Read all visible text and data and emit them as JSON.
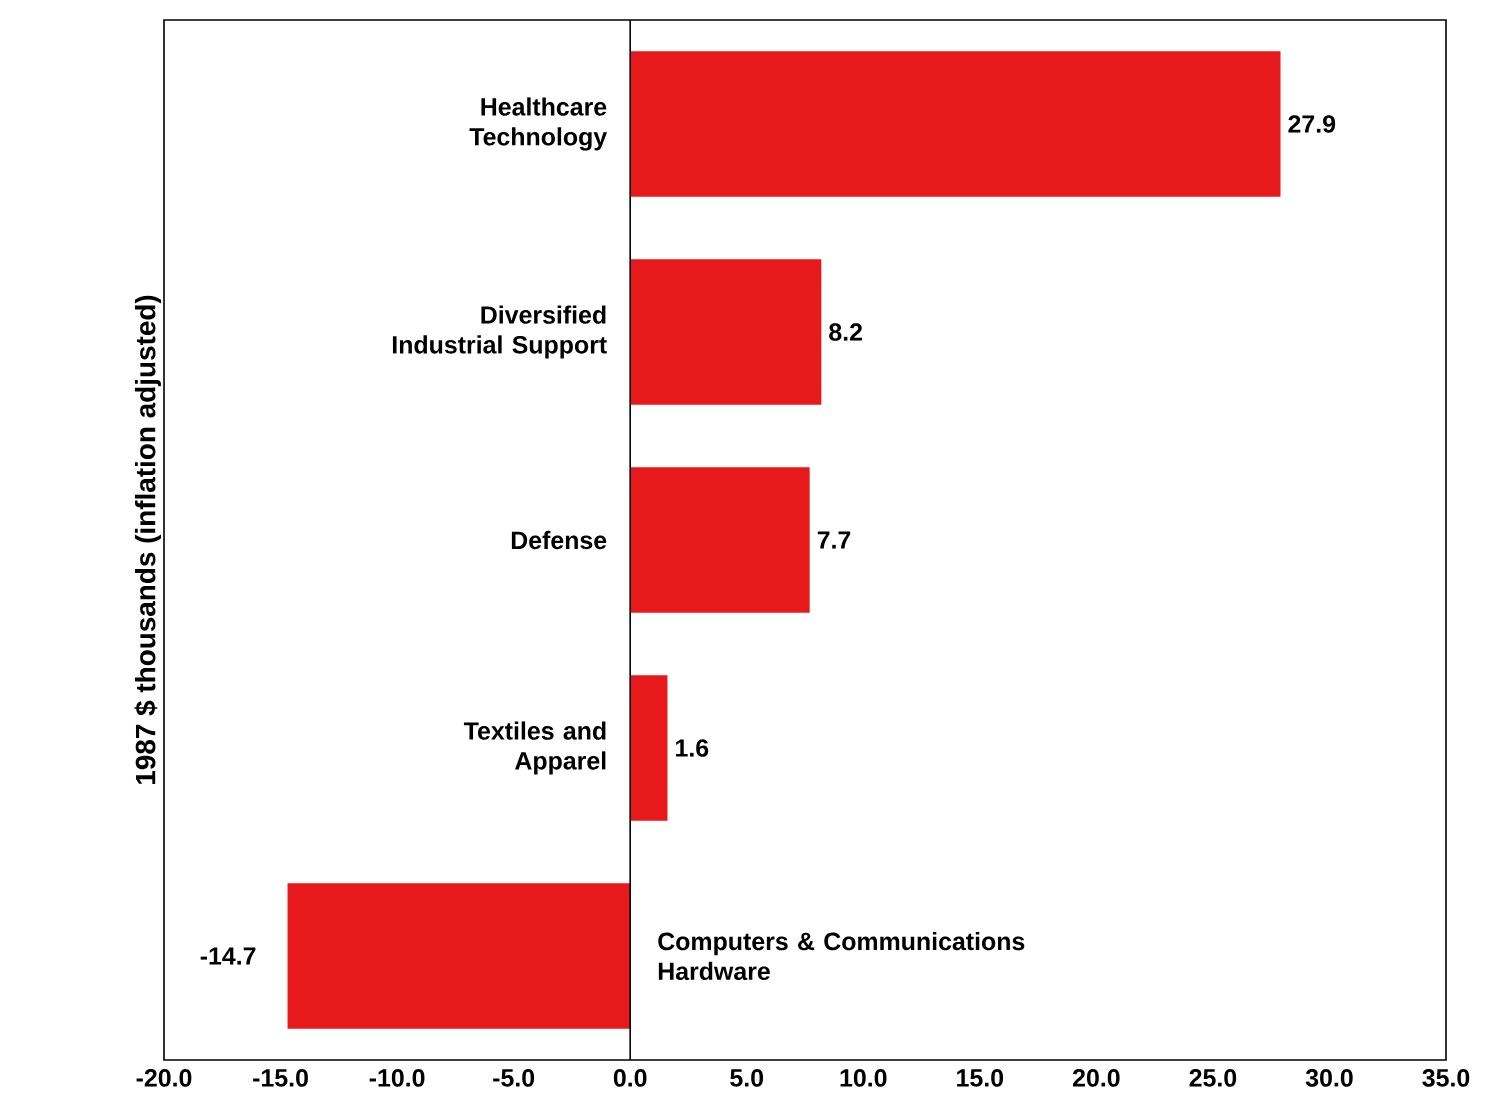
{
  "chart_data": {
    "type": "bar",
    "orientation": "horizontal",
    "ylabel": "1987 $ thousands (inflation adjusted)",
    "categories": [
      "Healthcare Technology",
      "Diversified Industrial Support",
      "Defense",
      "Textiles and Apparel",
      "Computers & Communications Hardware"
    ],
    "values": [
      27.9,
      8.2,
      7.7,
      1.6,
      -14.7
    ],
    "value_labels": [
      "27.9",
      "8.2",
      "7.7",
      "1.6",
      "-14.7"
    ],
    "color": "#e8191a",
    "xlim": [
      -20,
      35
    ],
    "xticks": [
      {
        "value": -20,
        "label": "-20.0"
      },
      {
        "value": -15,
        "label": "-15.0"
      },
      {
        "value": -10,
        "label": "-10.0"
      },
      {
        "value": -5,
        "label": "-5.0"
      },
      {
        "value": 0,
        "label": "0.0"
      },
      {
        "value": 5,
        "label": "5.0"
      },
      {
        "value": 10,
        "label": "10.0"
      },
      {
        "value": 15,
        "label": "15.0"
      },
      {
        "value": 20,
        "label": "20.0"
      },
      {
        "value": 25,
        "label": "25.0"
      },
      {
        "value": 30,
        "label": "30.0"
      },
      {
        "value": 35,
        "label": "35.0"
      }
    ],
    "grid": false
  }
}
